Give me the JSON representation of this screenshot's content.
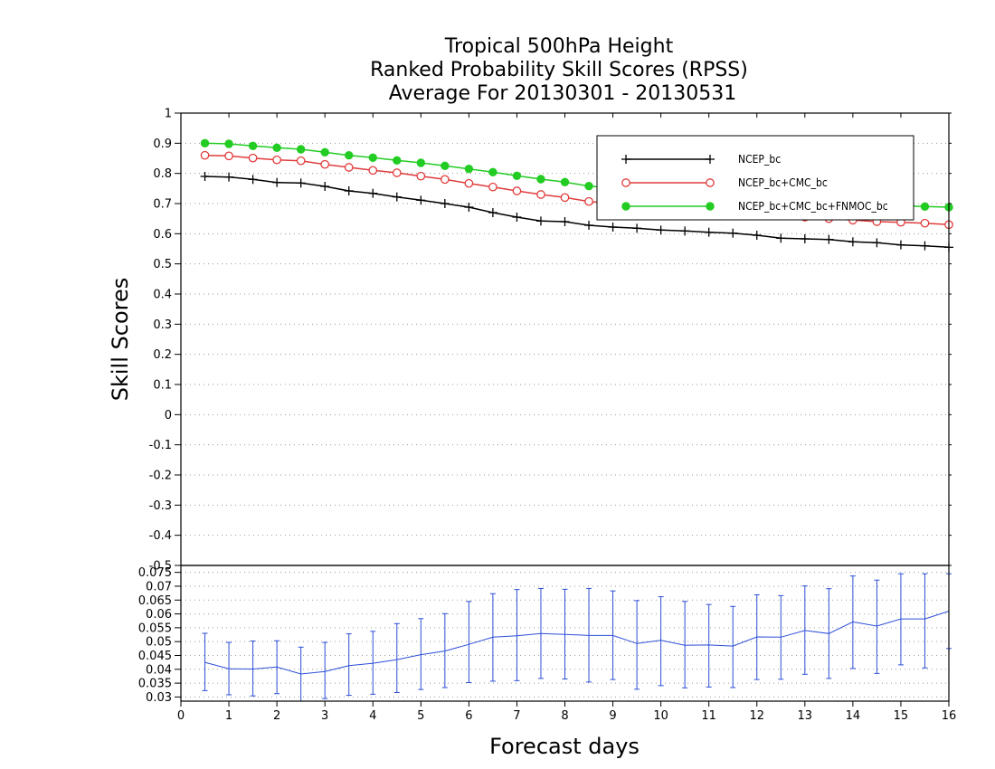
{
  "chart_data": {
    "title_lines": [
      "Tropical 500hPa Height",
      "Ranked Probability Skill Scores (RPSS)",
      "Average For 20130301 - 20130531"
    ],
    "xlabel": "Forecast days",
    "ylabel": "Skill Scores",
    "xlim": [
      0,
      16
    ],
    "x_ticks": [
      "0",
      "1",
      "2",
      "3",
      "4",
      "5",
      "6",
      "7",
      "8",
      "9",
      "10",
      "11",
      "12",
      "13",
      "14",
      "15",
      "16"
    ],
    "top_panel": {
      "type": "line",
      "ylim": [
        -0.5,
        1
      ],
      "y_ticks": [
        "1",
        "0.9",
        "0.8",
        "0.7",
        "0.6",
        "0.5",
        "0.4",
        "0.3",
        "0.2",
        "0.1",
        "0",
        "-0.1",
        "-0.2",
        "-0.3",
        "-0.4",
        "-0.5"
      ],
      "grid": "dotted",
      "legend_position": "top-right",
      "x": [
        0.5,
        1,
        1.5,
        2,
        2.5,
        3,
        3.5,
        4,
        4.5,
        5,
        5.5,
        6,
        6.5,
        7,
        7.5,
        8,
        8.5,
        9,
        9.5,
        10,
        10.5,
        11,
        11.5,
        12,
        12.5,
        13,
        13.5,
        14,
        14.5,
        15,
        15.5,
        16
      ],
      "series": [
        {
          "name": "NCEP_bc",
          "color": "#000000",
          "marker": "plus",
          "values": [
            0.79,
            0.788,
            0.78,
            0.77,
            0.768,
            0.757,
            0.742,
            0.734,
            0.722,
            0.711,
            0.7,
            0.688,
            0.67,
            0.655,
            0.642,
            0.64,
            0.628,
            0.622,
            0.618,
            0.612,
            0.609,
            0.605,
            0.602,
            0.595,
            0.585,
            0.583,
            0.581,
            0.573,
            0.57,
            0.563,
            0.56,
            0.555
          ]
        },
        {
          "name": "NCEP_bc+CMC_bc",
          "color": "#e03c3c",
          "marker": "open-circle",
          "values": [
            0.86,
            0.858,
            0.851,
            0.845,
            0.842,
            0.83,
            0.82,
            0.81,
            0.802,
            0.791,
            0.78,
            0.767,
            0.755,
            0.742,
            0.73,
            0.72,
            0.707,
            0.7,
            0.695,
            0.69,
            0.684,
            0.677,
            0.672,
            0.665,
            0.66,
            0.655,
            0.65,
            0.645,
            0.64,
            0.638,
            0.635,
            0.63
          ]
        },
        {
          "name": "NCEP_bc+CMC_bc+FNMOC_bc",
          "color": "#22cc22",
          "marker": "filled-circle",
          "values": [
            0.9,
            0.898,
            0.891,
            0.885,
            0.88,
            0.87,
            0.86,
            0.852,
            0.843,
            0.835,
            0.825,
            0.815,
            0.804,
            0.792,
            0.781,
            0.771,
            0.758,
            0.752,
            0.745,
            0.74,
            0.735,
            0.73,
            0.725,
            0.72,
            0.714,
            0.708,
            0.703,
            0.699,
            0.695,
            0.693,
            0.69,
            0.688
          ]
        }
      ]
    },
    "bottom_panel": {
      "type": "line",
      "style": "error-bars",
      "color": "#2d4fd6",
      "ylim": [
        0.0285,
        0.0775
      ],
      "y_ticks": [
        "0.075",
        "0.07",
        "0.065",
        "0.06",
        "0.055",
        "0.05",
        "0.045",
        "0.04",
        "0.035",
        "0.03"
      ],
      "grid": "dotted",
      "x": [
        0.5,
        1,
        1.5,
        2,
        2.5,
        3,
        3.5,
        4,
        4.5,
        5,
        5.5,
        6,
        6.5,
        7,
        7.5,
        8,
        8.5,
        9,
        9.5,
        10,
        10.5,
        11,
        11.5,
        12,
        12.5,
        13,
        13.5,
        14,
        14.5,
        15,
        15.5,
        16
      ],
      "values": [
        0.0425,
        0.0402,
        0.0401,
        0.0408,
        0.0383,
        0.0392,
        0.0413,
        0.0422,
        0.0435,
        0.0453,
        0.0466,
        0.049,
        0.0516,
        0.0521,
        0.0529,
        0.0526,
        0.0522,
        0.0522,
        0.0493,
        0.0505,
        0.0487,
        0.0488,
        0.0484,
        0.0517,
        0.0516,
        0.054,
        0.0529,
        0.0571,
        0.0556,
        0.0582,
        0.0582,
        0.061
      ],
      "upper": [
        0.053,
        0.0497,
        0.0502,
        0.0503,
        0.048,
        0.0497,
        0.0528,
        0.0537,
        0.0565,
        0.0583,
        0.0601,
        0.0645,
        0.0673,
        0.0688,
        0.0692,
        0.0689,
        0.0692,
        0.0683,
        0.0648,
        0.0662,
        0.0645,
        0.0634,
        0.0627,
        0.0669,
        0.0666,
        0.0701,
        0.0691,
        0.0737,
        0.0722,
        0.0745,
        0.0745,
        0.0745
      ],
      "lower": [
        0.0323,
        0.0308,
        0.0304,
        0.0312,
        0.0283,
        0.0294,
        0.0306,
        0.031,
        0.0316,
        0.0327,
        0.0334,
        0.0352,
        0.0357,
        0.0359,
        0.0367,
        0.0365,
        0.0354,
        0.0363,
        0.0328,
        0.0341,
        0.0333,
        0.0336,
        0.0334,
        0.0363,
        0.0364,
        0.0382,
        0.0367,
        0.0403,
        0.0385,
        0.0416,
        0.0405,
        0.0475
      ]
    }
  }
}
